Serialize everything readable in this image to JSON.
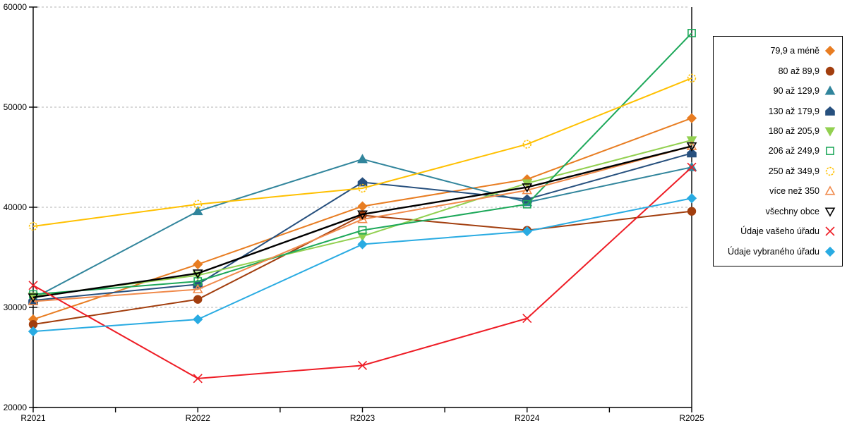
{
  "chart_data": {
    "type": "line",
    "title": "",
    "xlabel": "",
    "ylabel": "",
    "x_categories": [
      "R2021",
      "R2022",
      "R2023",
      "R2024",
      "R2025"
    ],
    "ylim": [
      20000,
      60000
    ],
    "ytick_step": 10000,
    "grid": "horizontal-dashed",
    "legend_position": "right",
    "series": [
      {
        "name": "79,9 a méně",
        "color": "#E87D22",
        "marker": "diamond",
        "filled": true,
        "dash": false,
        "width": 2,
        "values": [
          28800,
          34300,
          40100,
          42800,
          48900
        ]
      },
      {
        "name": "80 až 89,9",
        "color": "#A23E0E",
        "marker": "circle",
        "filled": true,
        "dash": false,
        "width": 2,
        "values": [
          28300,
          30800,
          39200,
          37700,
          39600
        ]
      },
      {
        "name": "90 až 129,9",
        "color": "#31859C",
        "marker": "triangle-up",
        "filled": true,
        "dash": false,
        "width": 2,
        "values": [
          30900,
          39600,
          44800,
          40500,
          44000
        ]
      },
      {
        "name": "130 až 179,9",
        "color": "#27507E",
        "marker": "pentagon",
        "filled": true,
        "dash": false,
        "width": 2,
        "values": [
          30700,
          32300,
          42500,
          40800,
          45400
        ]
      },
      {
        "name": "180 až 205,9",
        "color": "#92D050",
        "marker": "triangle-down",
        "filled": true,
        "dash": false,
        "width": 2,
        "values": [
          31100,
          33200,
          37100,
          42400,
          46700
        ]
      },
      {
        "name": "206 až 249,9",
        "color": "#1DA85A",
        "marker": "square",
        "filled": false,
        "dash": false,
        "width": 2,
        "values": [
          31300,
          32600,
          37700,
          40300,
          57400
        ]
      },
      {
        "name": "250 až 349,9",
        "color": "#FFC000",
        "marker": "circle",
        "filled": false,
        "dash": true,
        "width": 2,
        "values": [
          38100,
          40300,
          41900,
          46300,
          52900
        ]
      },
      {
        "name": "více než 350",
        "color": "#F08A4B",
        "marker": "triangle-up",
        "filled": false,
        "dash": false,
        "width": 2,
        "values": [
          30600,
          31800,
          38800,
          41700,
          46100
        ]
      },
      {
        "name": "všechny obce",
        "color": "#000000",
        "marker": "triangle-down",
        "filled": false,
        "dash": false,
        "width": 2.4,
        "values": [
          31000,
          33400,
          39300,
          42000,
          46100
        ]
      },
      {
        "name": "Údaje vašeho úřadu",
        "color": "#EE1C25",
        "marker": "x",
        "filled": false,
        "dash": false,
        "width": 2,
        "values": [
          32200,
          22900,
          24200,
          28900,
          44000
        ]
      },
      {
        "name": "Údaje vybraného úřadu",
        "color": "#29ABE2",
        "marker": "diamond",
        "filled": true,
        "dash": false,
        "width": 2,
        "values": [
          27600,
          28800,
          36300,
          37600,
          40900
        ]
      }
    ]
  }
}
